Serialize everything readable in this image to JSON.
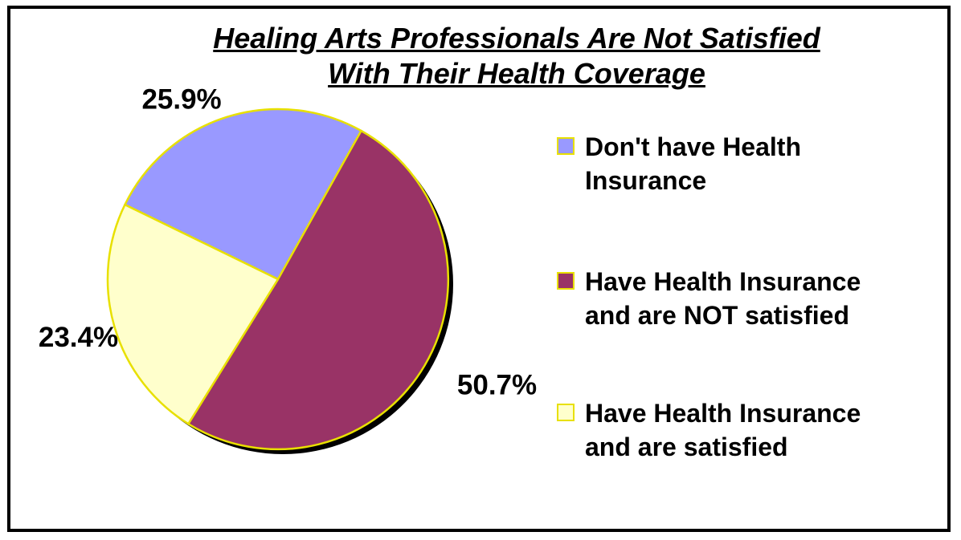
{
  "chart_data": {
    "type": "pie",
    "title_lines": [
      "Healing Arts Professionals Are Not Satisfied",
      "With Their Health Coverage"
    ],
    "slices": [
      {
        "label": "Don't have Health Insurance",
        "label_lines": [
          "Don't have Health",
          "Insurance"
        ],
        "value": 25.9,
        "value_label": "25.9%",
        "color": "#9999ff"
      },
      {
        "label": "Have Health Insurance and are NOT satisfied",
        "label_lines": [
          "Have Health Insurance",
          "and are NOT satisfied"
        ],
        "value": 50.7,
        "value_label": "50.7%",
        "color": "#993366"
      },
      {
        "label": "Have Health Insurance and are satisfied",
        "label_lines": [
          "Have Health Insurance",
          "and are satisfied"
        ],
        "value": 23.4,
        "value_label": "23.4%",
        "color": "#ffffcc"
      }
    ],
    "slice_border_color": "#e8e000",
    "legend_position": "right"
  }
}
